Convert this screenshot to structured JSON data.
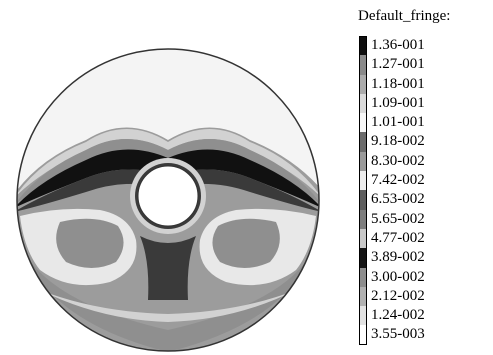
{
  "legend": {
    "title": "Default_fringe:",
    "levels": [
      {
        "label": "1.36-001",
        "color": "#0f0f0f"
      },
      {
        "label": "1.27-001",
        "color": "#8a8a8a"
      },
      {
        "label": "1.18-001",
        "color": "#ababab"
      },
      {
        "label": "1.09-001",
        "color": "#dadada"
      },
      {
        "label": "1.01-001",
        "color": "#f7f7f7"
      },
      {
        "label": "9.18-002",
        "color": "#6c6c6c"
      },
      {
        "label": "8.30-002",
        "color": "#9a9a9a"
      },
      {
        "label": "7.42-002",
        "color": "#ededed"
      },
      {
        "label": "6.53-002",
        "color": "#5e5e5e"
      },
      {
        "label": "5.65-002",
        "color": "#7e7e7e"
      },
      {
        "label": "4.77-002",
        "color": "#c8c8c8"
      },
      {
        "label": "3.89-002",
        "color": "#141414"
      },
      {
        "label": "3.00-002",
        "color": "#8e8e8e"
      },
      {
        "label": "2.12-002",
        "color": "#b1b1b1"
      },
      {
        "label": "1.24-002",
        "color": "#e2e2e2"
      },
      {
        "label": "3.55-003",
        "color": "#ffffff"
      }
    ]
  },
  "contour_colors": {
    "outline": "#333333",
    "background_field": "#9c9c9c",
    "upper_light": "#f4f4f4",
    "band_light": "#d2d2d2",
    "band_mid": "#8f8f8f",
    "band_dark": "#3a3a3a",
    "band_black": "#111111",
    "lobe_light": "#e8e8e8",
    "hole": "#ffffff"
  }
}
